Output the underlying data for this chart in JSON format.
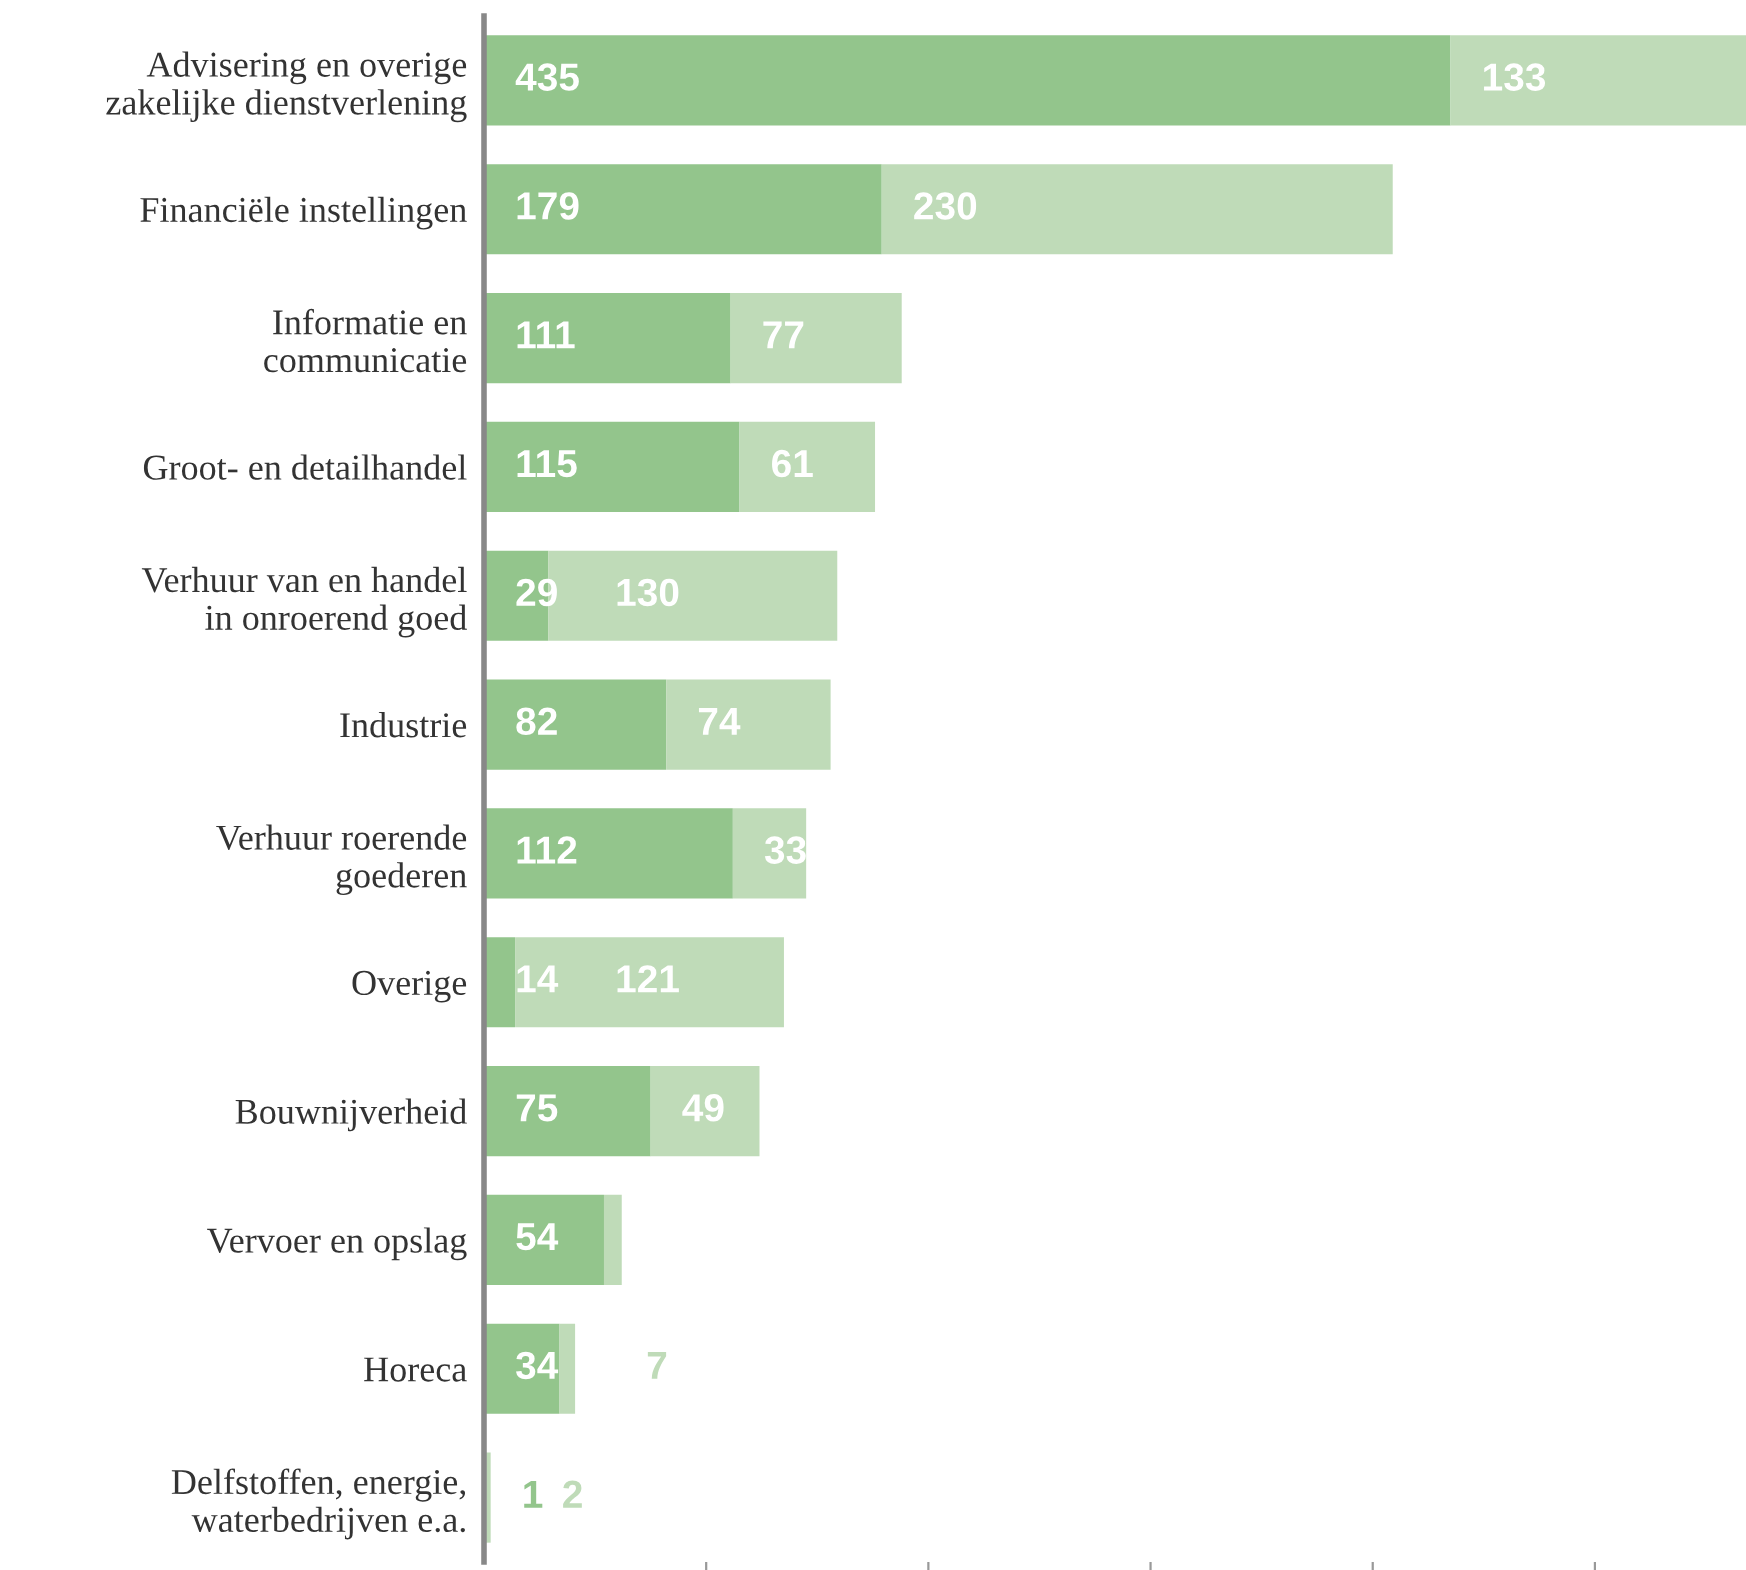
{
  "chart_data": {
    "type": "bar",
    "orientation": "horizontal",
    "stacked": true,
    "categories": [
      "Advisering en overige zakelijke dienstverlening",
      "Financiële instellingen",
      "Informatie en communicatie",
      "Groot- en detailhandel",
      "Verhuur van en handel in onroerend goed",
      "Industrie",
      "Verhuur roerende goederen",
      "Overige",
      "Bouwnijverheid",
      "Vervoer en opslag",
      "Horeca",
      "Delfstoffen, energie, waterbedrijven e.a."
    ],
    "series": [
      {
        "color": "#93c58c",
        "values": [
          435,
          179,
          111,
          115,
          29,
          82,
          112,
          14,
          75,
          54,
          34,
          1
        ],
        "value_labels": [
          "435",
          "179",
          "111",
          "115",
          "29",
          "82",
          "112",
          "14",
          "75",
          "54",
          "34",
          "1"
        ]
      },
      {
        "color": "#bfdbb8",
        "values": [
          133,
          230,
          77,
          61,
          130,
          74,
          33,
          121,
          49,
          8,
          7,
          2
        ],
        "value_labels": [
          "133",
          "230",
          "77",
          "61",
          "130",
          "74",
          "33",
          "121",
          "49",
          null,
          "7",
          "2"
        ]
      }
    ],
    "xlim": [
      0,
      568
    ],
    "xticks": [
      {
        "value": 100,
        "label": null
      },
      {
        "value": 200,
        "label": null
      },
      {
        "value": 300,
        "label": null
      },
      {
        "value": 400,
        "label": null
      },
      {
        "value": 500,
        "label": null
      }
    ],
    "tick_labels": "y",
    "grid": false,
    "legend": false
  }
}
